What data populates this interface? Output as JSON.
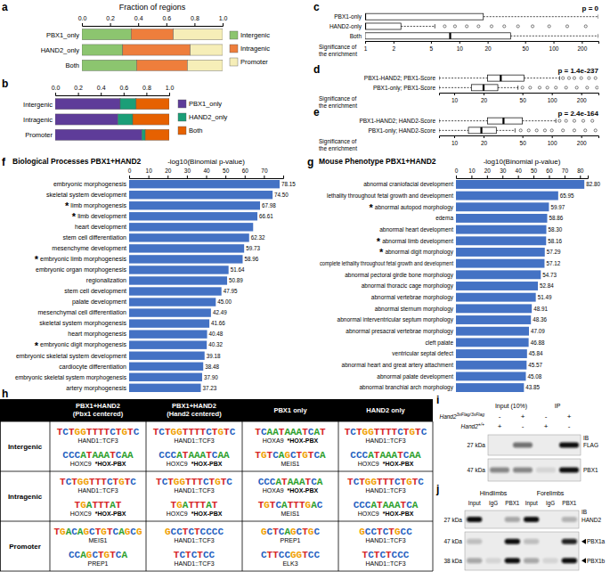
{
  "chart_data": [
    {
      "panel": "a",
      "type": "bar",
      "orientation": "horizontal",
      "stacked": true,
      "x_label": "Fraction of regions",
      "categories": [
        "PBX1_only",
        "HAND2_only",
        "Both"
      ],
      "series": [
        {
          "name": "Intergenic",
          "color": "#8cc56f",
          "values": [
            0.35,
            0.29,
            0.39
          ]
        },
        {
          "name": "Intragenic",
          "color": "#ee7e3c",
          "values": [
            0.3,
            0.48,
            0.36
          ]
        },
        {
          "name": "Promoter",
          "color": "#f6eeb8",
          "values": [
            0.35,
            0.23,
            0.25
          ]
        }
      ],
      "xlim": [
        0,
        1
      ],
      "xticks": [
        {
          "value": 0,
          "label": "0.0"
        },
        {
          "value": 0.2,
          "label": "0.2"
        },
        {
          "value": 0.4,
          "label": "0.4"
        },
        {
          "value": 0.6,
          "label": "0.6"
        },
        {
          "value": 0.8,
          "label": "0.8"
        },
        {
          "value": 1,
          "label": "1.0"
        }
      ],
      "legend": "right"
    },
    {
      "panel": "b",
      "type": "bar",
      "orientation": "horizontal",
      "stacked": true,
      "categories": [
        "Intergenic",
        "Intragenic",
        "Promoter"
      ],
      "series": [
        {
          "name": "PBX1_only",
          "color": "#5e3c99",
          "values": [
            0.57,
            0.55,
            0.76
          ]
        },
        {
          "name": "HAND2_only",
          "color": "#1b9e77",
          "values": [
            0.14,
            0.13,
            0.03
          ]
        },
        {
          "name": "Both",
          "color": "#e66101",
          "values": [
            0.29,
            0.32,
            0.21
          ]
        }
      ],
      "xlim": [
        0,
        1
      ],
      "xticks": [
        {
          "value": 0,
          "label": "0.0"
        },
        {
          "value": 0.2,
          "label": "0.2"
        },
        {
          "value": 0.4,
          "label": "0.4"
        },
        {
          "value": 0.6,
          "label": "0.6"
        },
        {
          "value": 0.8,
          "label": "0.8"
        },
        {
          "value": 1,
          "label": "1.0"
        }
      ],
      "legend": "right"
    },
    {
      "panel": "c",
      "type": "box",
      "orientation": "horizontal",
      "log": "x",
      "annotation": "p = 0",
      "x_label": "Significance of the enrichment",
      "categories": [
        "PBX1-only",
        "HAND2-only",
        "Both"
      ],
      "boxes": [
        {
          "min": 1,
          "q1": 1,
          "median": 1,
          "q3": 18,
          "max": 300,
          "outliers": []
        },
        {
          "min": 1,
          "q1": 1,
          "median": 1,
          "q3": 2.4,
          "max": 5.5,
          "outliers": [
            7,
            9,
            12,
            16,
            22,
            30,
            42,
            60,
            90,
            140,
            220
          ]
        },
        {
          "min": 1,
          "q1": 1,
          "median": 8,
          "q3": 35,
          "max": 300,
          "outliers": []
        }
      ],
      "xlim": [
        1,
        300
      ],
      "xticks": [
        1,
        2,
        5,
        10,
        20,
        50,
        100,
        200
      ]
    },
    {
      "panel": "d",
      "type": "box",
      "orientation": "horizontal",
      "log": "x",
      "annotation": "p = 1.4e-237",
      "x_label": "Significance of the enrichment",
      "categories": [
        "PBX1-HAND2; PBX1-Score",
        "PBX1-only; PBX1-Score"
      ],
      "boxes": [
        {
          "min": 7,
          "q1": 22,
          "median": 30,
          "q3": 52,
          "max": 120,
          "outliers": [
            130,
            150,
            170,
            200,
            240,
            280
          ]
        },
        {
          "min": 7,
          "q1": 15,
          "median": 20,
          "q3": 28,
          "max": 45,
          "outliers": [
            50,
            60,
            75,
            90,
            110,
            140,
            180,
            230,
            290
          ]
        }
      ],
      "xlim": [
        7,
        300
      ],
      "xticks": [
        10,
        20,
        50,
        100,
        200
      ]
    },
    {
      "panel": "e",
      "type": "box",
      "orientation": "horizontal",
      "log": "x",
      "annotation": "p = 2.4e-164",
      "x_label": "Significance of the enrichment",
      "categories": [
        "PBX1-HAND2; HAND2-Score",
        "PBX1-only; HAND2-Score"
      ],
      "boxes": [
        {
          "min": 7,
          "q1": 22,
          "median": 32,
          "q3": 50,
          "max": 110,
          "outliers": [
            120,
            140,
            170,
            210,
            260
          ]
        },
        {
          "min": 7,
          "q1": 14,
          "median": 19,
          "q3": 27,
          "max": 42,
          "outliers": [
            48,
            58,
            70,
            85,
            100,
            130,
            170,
            220,
            280
          ]
        }
      ],
      "xlim": [
        7,
        300
      ],
      "xticks": [
        10,
        20,
        50,
        100,
        200
      ]
    },
    {
      "panel": "f",
      "type": "bar",
      "orientation": "horizontal",
      "title": "Biological Processes PBX1+HAND2",
      "x_label": "-log10(Binomial p-value)",
      "color": "#4472c4",
      "data_labels": true,
      "categories": [
        "embryonic morphogenesis",
        "skeletal system development",
        "limb morphogenesis",
        "limb development",
        "heart development",
        "stem cell differentiation",
        "mesenchyme development",
        "embryonic limb morphogenesis",
        "embryonic organ morphogenesis",
        "regionalization",
        "stem cell development",
        "palate development",
        "mesenchymal cell differentiation",
        "skeletal system morphogenesis",
        "heart morphogenesis",
        "embryonic digit morphogenesis",
        "embryonic skeletal system development",
        "cardiocyte differentiation",
        "embryonic skeletal system morphogenesis",
        "artery morphogenesis"
      ],
      "values": [
        78.15,
        74.5,
        67.98,
        66.61,
        64.4,
        62.32,
        59.73,
        58.96,
        51.64,
        50.89,
        47.95,
        45.0,
        42.49,
        41.66,
        40.48,
        40.32,
        39.18,
        38.48,
        37.9,
        37.23
      ],
      "value_labels": [
        "78.15",
        "74.50",
        "67.98",
        "66.61",
        null,
        "62.32",
        "59.73",
        "58.96",
        "51.64",
        "50.89",
        "47.95",
        "45.00",
        "42.49",
        "41.66",
        "40.48",
        "40.32",
        "39.18",
        "38.48",
        "37.90",
        "37.23"
      ],
      "annotations": [
        {
          "index": 2,
          "text": "*"
        },
        {
          "index": 3,
          "text": "*"
        },
        {
          "index": 7,
          "text": "*"
        },
        {
          "index": 15,
          "text": "*"
        }
      ],
      "xlim": [
        0,
        80
      ],
      "xticks": [
        0,
        10,
        20,
        30,
        40,
        50,
        60,
        70
      ]
    },
    {
      "panel": "g",
      "type": "bar",
      "orientation": "horizontal",
      "title": "Mouse Phenotype PBX1+HAND2",
      "x_label": "-log10(Binomial p-value)",
      "color": "#4472c4",
      "data_labels": true,
      "categories": [
        "abnormal craniofacial development",
        "lethality throughout fetal growth and development",
        "abnormal autopod morphology",
        "edema",
        "abnormal heart development",
        "abnormal limb development",
        "abnormal digit morphology",
        "complete lethality throughout fetal growth and development",
        "abnormal pectoral girdle bone morphology",
        "abnormal thoracic cage morphology",
        "abnormal vertebrae morphology",
        "abnormal sternum morphology",
        "abnormal interventricular septum morphology",
        "abnormal presacral vertebrae morphology",
        "cleft palate",
        "ventricular septal defect",
        "abnormal heart and great artery attachment",
        "abnormal palate development",
        "abnormal branchial arch morphology"
      ],
      "values": [
        82.8,
        65.95,
        59.97,
        58.86,
        58.3,
        58.16,
        57.29,
        57.12,
        54.73,
        52.84,
        51.49,
        48.91,
        48.36,
        47.09,
        46.88,
        45.84,
        45.57,
        45.08,
        43.85
      ],
      "value_labels": [
        "82.80",
        "65.95",
        "59.97",
        "58.86",
        "58.30",
        "58.16",
        "57.29",
        "57.12",
        "54.73",
        "52.84",
        "51.49",
        "48.91",
        "48.36",
        "47.09",
        "46.88",
        "45.84",
        "45.57",
        "45.08",
        "43.85"
      ],
      "annotations": [
        {
          "index": 2,
          "text": "*"
        },
        {
          "index": 5,
          "text": "*"
        },
        {
          "index": 6,
          "text": "*"
        }
      ],
      "xlim": [
        0,
        85
      ],
      "xticks": [
        0,
        10,
        20,
        30,
        40,
        50,
        60,
        70,
        80
      ]
    }
  ],
  "motif_table": {
    "panel": "h",
    "columns": [
      [
        "PBX1+HAND2",
        "(Pbx1 centered)"
      ],
      [
        "PBX1+HAND2",
        "(Hand2 centered)"
      ],
      [
        "PBX1 only"
      ],
      [
        "HAND2 only"
      ]
    ],
    "rows": [
      {
        "label": "Intergenic",
        "cells": [
          [
            {
              "logo": "TCTGGTTTTCTGTC",
              "name": "HAND1::TCF3"
            },
            {
              "logo": "CCCATAAATCAA",
              "name": "HOXC9",
              "tag": "*HOX-PBX"
            }
          ],
          [
            {
              "logo": "TCTGGTTTTCTGTC",
              "name": "HAND1::TCF3"
            },
            {
              "logo": "CCCATAAATCAA",
              "name": "HOXC9",
              "tag": "*HOX-PBX"
            }
          ],
          [
            {
              "logo": "TCAATAAATCAT",
              "name": "HOXA9",
              "tag": "*HOX-PBX"
            },
            {
              "logo": "TGTCAGCTGTCA",
              "name": "MEIS1"
            }
          ],
          [
            {
              "logo": "TCTGGTTTTCTGTC",
              "name": "HAND1::TCF3"
            },
            {
              "logo": "CCCATAAATCAA",
              "name": "HOXC9",
              "tag": "*HOX-PBX"
            }
          ]
        ]
      },
      {
        "label": "Intragenic",
        "cells": [
          [
            {
              "logo": "TCTGGTTTCTGTC",
              "name": "HAND1::TCF3"
            },
            {
              "logo": "TGATTTAT",
              "name": "HOXC9",
              "tag": "*HOX-PBX"
            }
          ],
          [
            {
              "logo": "TCTGGTTTCTGTC",
              "name": "HAND1::TCF3"
            },
            {
              "logo": "TGATTTAT",
              "name": "HOXC9",
              "tag": "*HOX-PBX"
            }
          ],
          [
            {
              "logo": "CCCATAAATCA",
              "name": "HOXA9",
              "tag": "*HOX-PBX"
            },
            {
              "logo": "TGTCATTTGAC",
              "name": "MEIS1"
            }
          ],
          [
            {
              "logo": "TCTGGTTTCTGTC",
              "name": "HAND1::TCF3"
            },
            {
              "logo": "CCCATAAATCA",
              "name": "HOXC9",
              "tag": "*HOX-PBX"
            }
          ]
        ]
      },
      {
        "label": "Promoter",
        "cells": [
          [
            {
              "logo": "TGACAGCTGTCAGCG",
              "name": "MEIS1"
            },
            {
              "logo": "CCAGCTGTCA",
              "name": "PREP1"
            }
          ],
          [
            {
              "logo": "GCCTCTCCCC",
              "name": "HAND1::TCF3"
            },
            {
              "logo": "TCTCTCC",
              "name": "HAND1::TCF3"
            }
          ],
          [
            {
              "logo": "GCTCAGCTGC",
              "name": "PREP1"
            },
            {
              "logo": "CTTCCGGTCC",
              "name": "ELK3"
            }
          ],
          [
            {
              "logo": "GCCTCTGCC",
              "name": "HAND1::TCF3"
            },
            {
              "logo": "TCTCTCCC",
              "name": "HAND1::TCF3"
            }
          ]
        ]
      }
    ]
  },
  "blots": [
    {
      "panel": "i",
      "groups": [
        "Input (10%)",
        "IP"
      ],
      "ib_label": "IB",
      "genotypes": [
        {
          "name": "Hand2",
          "sup": "3xFlag/3xFlag",
          "signs": [
            "-",
            "+",
            "-",
            "+"
          ]
        },
        {
          "name": "Hand2",
          "sup": "+/+",
          "signs": [
            "+",
            "-",
            "+",
            "-"
          ]
        }
      ],
      "strips": [
        {
          "bands": [
            {
              "kda": "27 kDa",
              "label": "FLAG",
              "intensity": [
                0,
                0.55,
                0,
                1
              ]
            }
          ]
        },
        {
          "bands": [
            {
              "kda": "47 kDa",
              "label": "PBX1",
              "intensity": [
                0.45,
                0.45,
                0.1,
                1
              ]
            }
          ]
        }
      ]
    },
    {
      "panel": "j",
      "groups": [
        "Hindlimbs",
        "Forelimbs"
      ],
      "ib_label": "IB",
      "lanes": [
        "Input",
        "IgG",
        "PBX1",
        "Input",
        "IgG",
        "PBX1"
      ],
      "strips": [
        {
          "bands": [
            {
              "kda": "27 kDa",
              "label": "HAND2",
              "intensity": [
                1,
                0,
                0.3,
                1,
                0,
                0.25
              ]
            }
          ]
        },
        {
          "bands": [
            {
              "kda": "47 kDa",
              "label": "PBX1a",
              "marker": "triangle",
              "intensity": [
                0.2,
                0,
                1,
                0.2,
                0,
                0.9
              ]
            },
            {
              "kda": "38 kDa",
              "label": "PBX1b",
              "marker": "triangle",
              "intensity": [
                0.3,
                0.1,
                1,
                0.3,
                0.1,
                1
              ]
            }
          ]
        }
      ]
    }
  ]
}
